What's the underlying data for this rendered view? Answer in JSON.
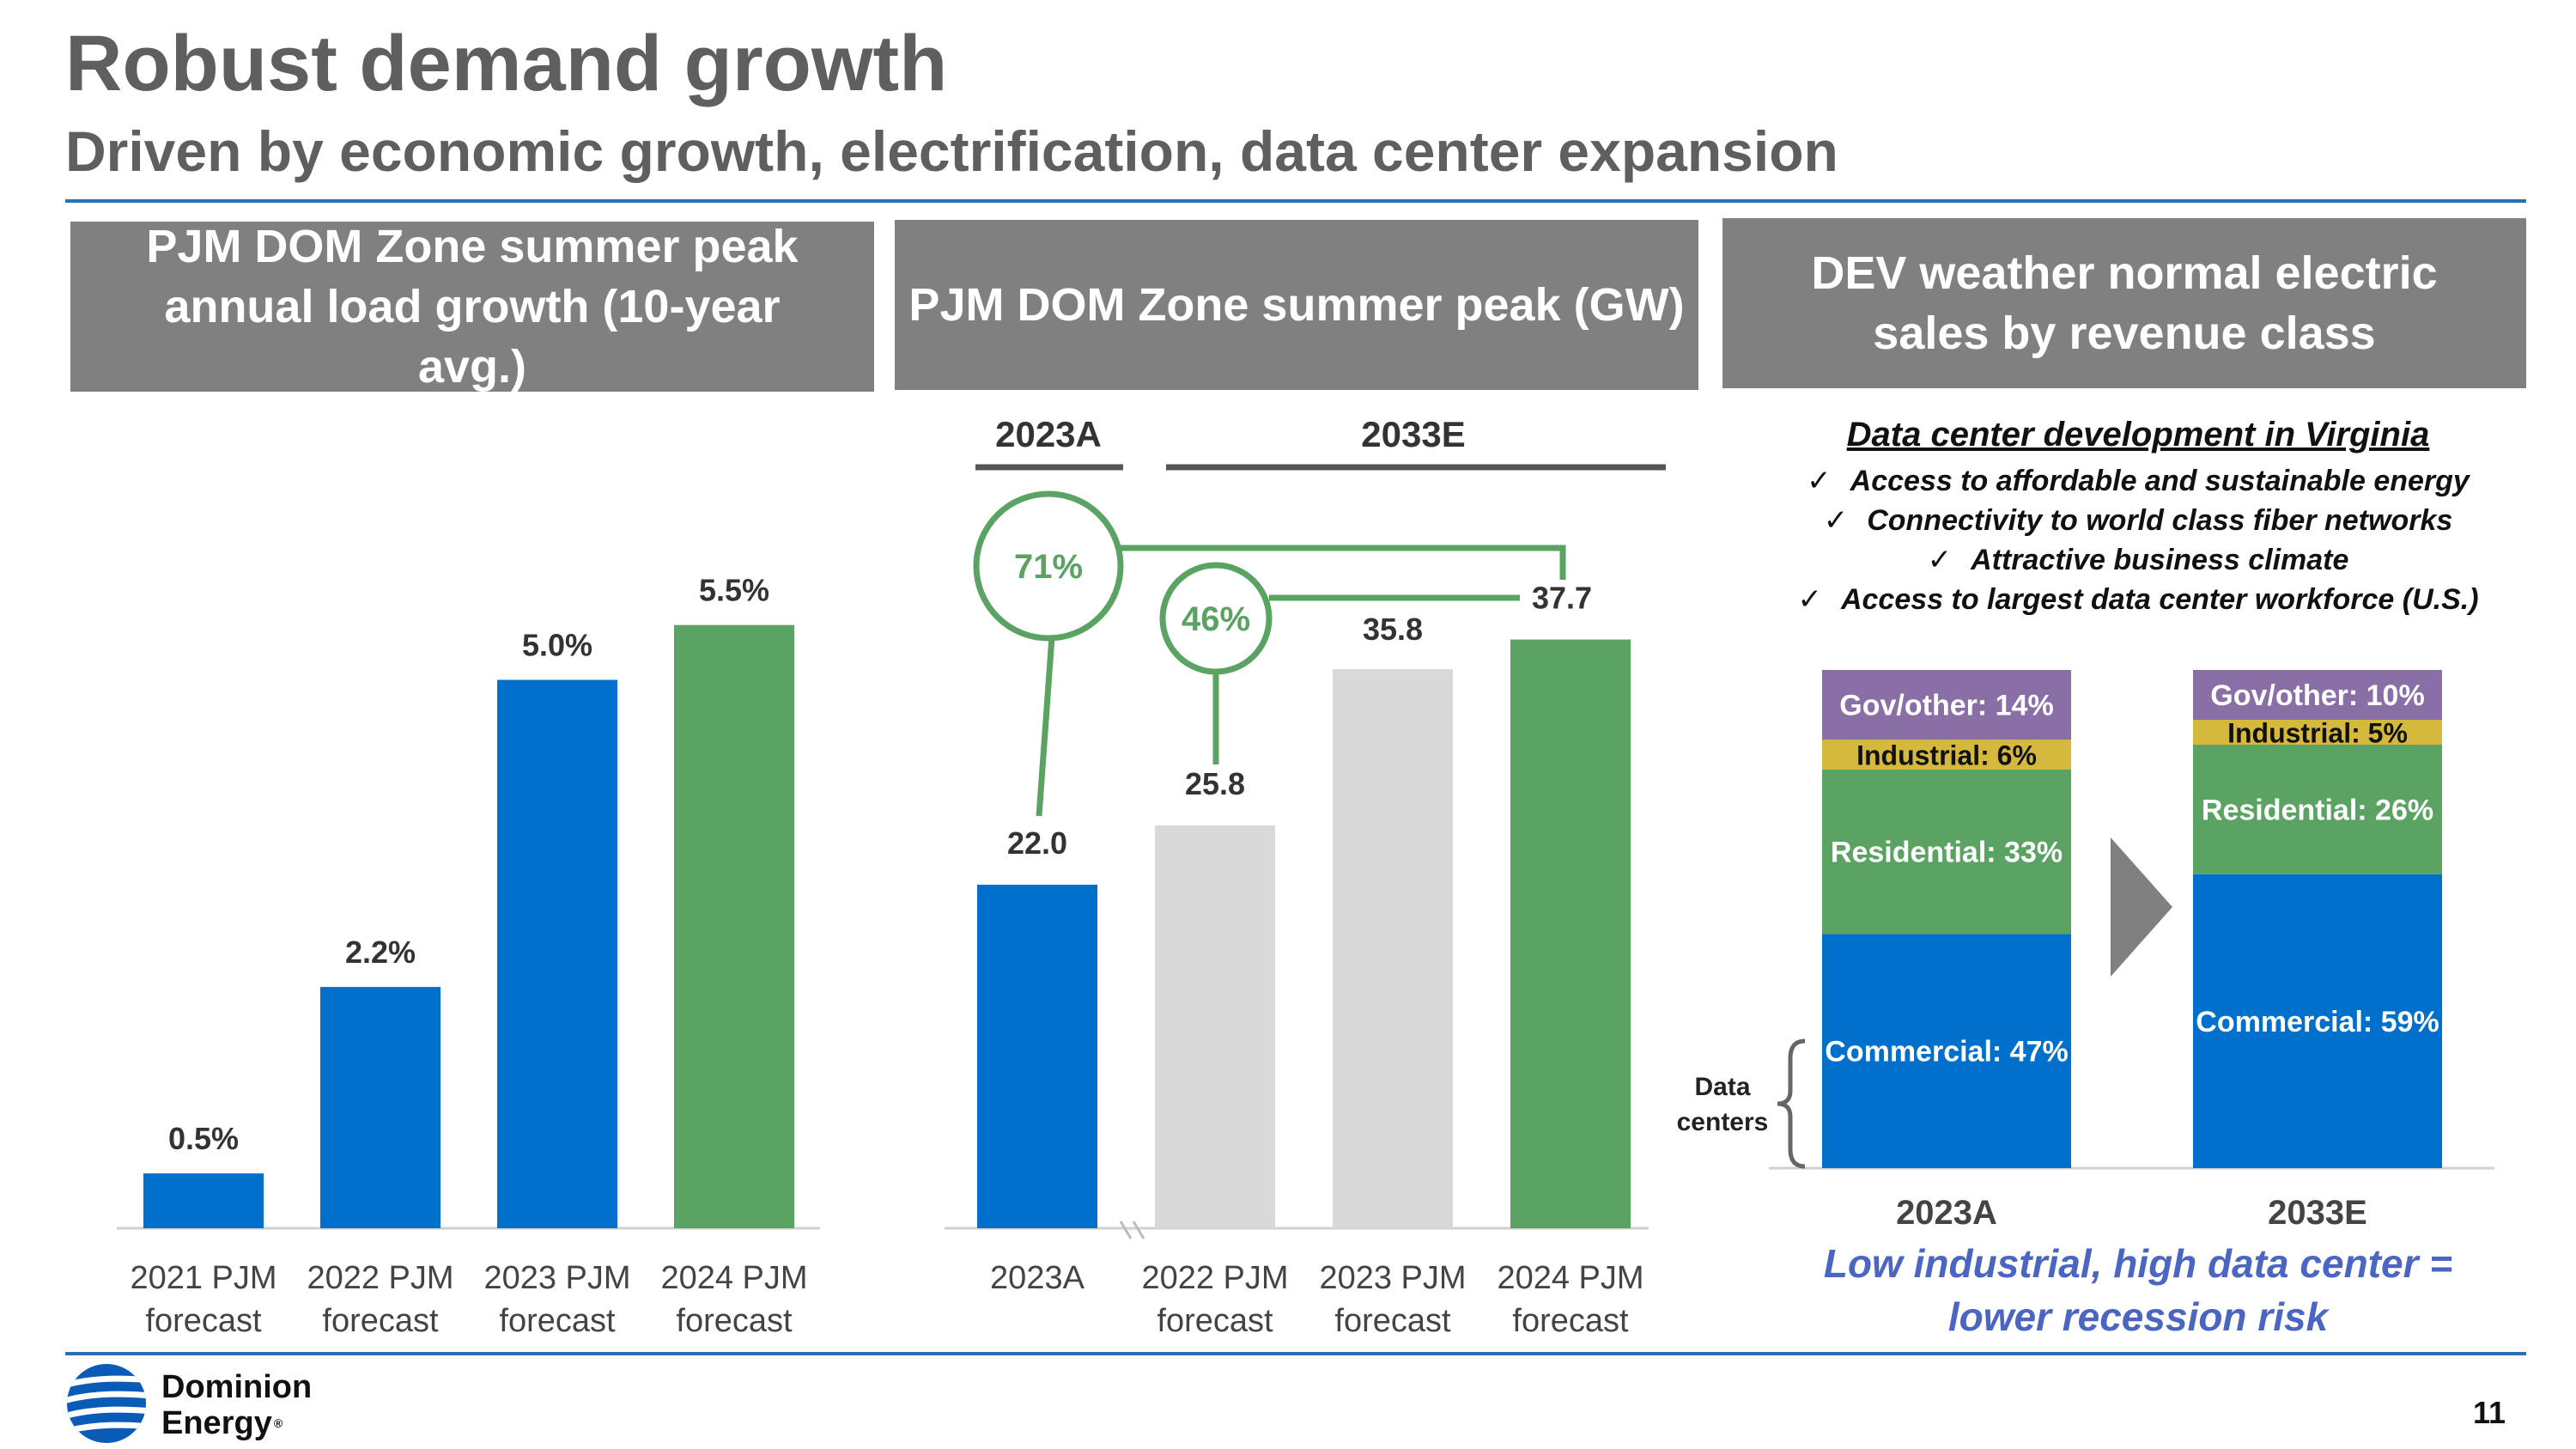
{
  "header": {
    "title": "Robust demand growth",
    "subtitle": "Driven by economic growth, electrification, data center expansion"
  },
  "panels": {
    "p1_title": "PJM DOM Zone summer peak annual load growth (10-year avg.)",
    "p2_title": "PJM DOM Zone summer peak (GW)",
    "p3_title": "DEV weather normal electric sales by revenue class"
  },
  "chart_data": [
    {
      "type": "bar",
      "title": "PJM DOM Zone summer peak annual load growth (10-year avg.)",
      "categories": [
        "2021 PJM forecast",
        "2022 PJM forecast",
        "2023 PJM forecast",
        "2024 PJM forecast"
      ],
      "category_lines": [
        [
          "2021 PJM",
          "forecast"
        ],
        [
          "2022 PJM",
          "forecast"
        ],
        [
          "2023 PJM",
          "forecast"
        ],
        [
          "2024 PJM",
          "forecast"
        ]
      ],
      "values": [
        0.5,
        2.2,
        5.0,
        5.5
      ],
      "labels": [
        "0.5%",
        "2.2%",
        "5.0%",
        "5.5%"
      ],
      "colors": [
        "#0070cc",
        "#0070cc",
        "#0070cc",
        "#5aa362"
      ],
      "ylim": [
        0,
        6.5
      ]
    },
    {
      "type": "bar",
      "title": "PJM DOM Zone summer peak (GW)",
      "categories": [
        "2023A",
        "2022 PJM forecast",
        "2023 PJM forecast",
        "2024 PJM forecast"
      ],
      "category_lines": [
        [
          "2023A"
        ],
        [
          "2022 PJM",
          "forecast"
        ],
        [
          "2023 PJM",
          "forecast"
        ],
        [
          "2024 PJM",
          "forecast"
        ]
      ],
      "values": [
        22.0,
        25.8,
        35.8,
        37.7
      ],
      "labels": [
        "22.0",
        "25.8",
        "35.8",
        "37.7"
      ],
      "colors": [
        "#0070cc",
        "#d9d9d9",
        "#d9d9d9",
        "#5aa362"
      ],
      "group_labels": [
        "2023A",
        "2033E"
      ],
      "growth_callouts": [
        {
          "label": "71%",
          "from": "2023A",
          "to": "2024 PJM forecast"
        },
        {
          "label": "46%",
          "from": "2022 PJM forecast",
          "to": "2024 PJM forecast"
        }
      ],
      "ylim": [
        0,
        44
      ]
    },
    {
      "type": "bar",
      "stacked": true,
      "title": "DEV weather normal electric sales by revenue class",
      "categories": [
        "2023A",
        "2033E"
      ],
      "series": [
        {
          "name": "Commercial",
          "values": [
            47,
            59
          ],
          "labels": [
            "Commercial: 47%",
            "Commercial: 59%"
          ],
          "color": "#0070cc"
        },
        {
          "name": "Residential",
          "values": [
            33,
            26
          ],
          "labels": [
            "Residential: 33%",
            "Residential: 26%"
          ],
          "color": "#5aa362"
        },
        {
          "name": "Industrial",
          "values": [
            6,
            5
          ],
          "labels": [
            "Industrial: 6%",
            "Industrial: 5%"
          ],
          "color": "#d4b93c"
        },
        {
          "name": "Gov/other",
          "values": [
            14,
            10
          ],
          "labels": [
            "Gov/other: 14%",
            "Gov/other: 10%"
          ],
          "color": "#8a6fa6"
        }
      ],
      "ylim": [
        0,
        100
      ],
      "annotation": "Data centers"
    }
  ],
  "data_center": {
    "title": "Data center development in Virginia",
    "bullets": [
      "Access to affordable and sustainable energy",
      "Connectivity to world class fiber networks",
      "Attractive business climate",
      "Access to largest data center workforce (U.S.)"
    ],
    "check_glyph": "✓"
  },
  "bottom_note": {
    "line1": "Low industrial, high data center =",
    "line2": "lower recession risk"
  },
  "footer": {
    "logo_line1": "Dominion",
    "logo_line2": "Energy",
    "registered": "®",
    "page_number": "11"
  }
}
